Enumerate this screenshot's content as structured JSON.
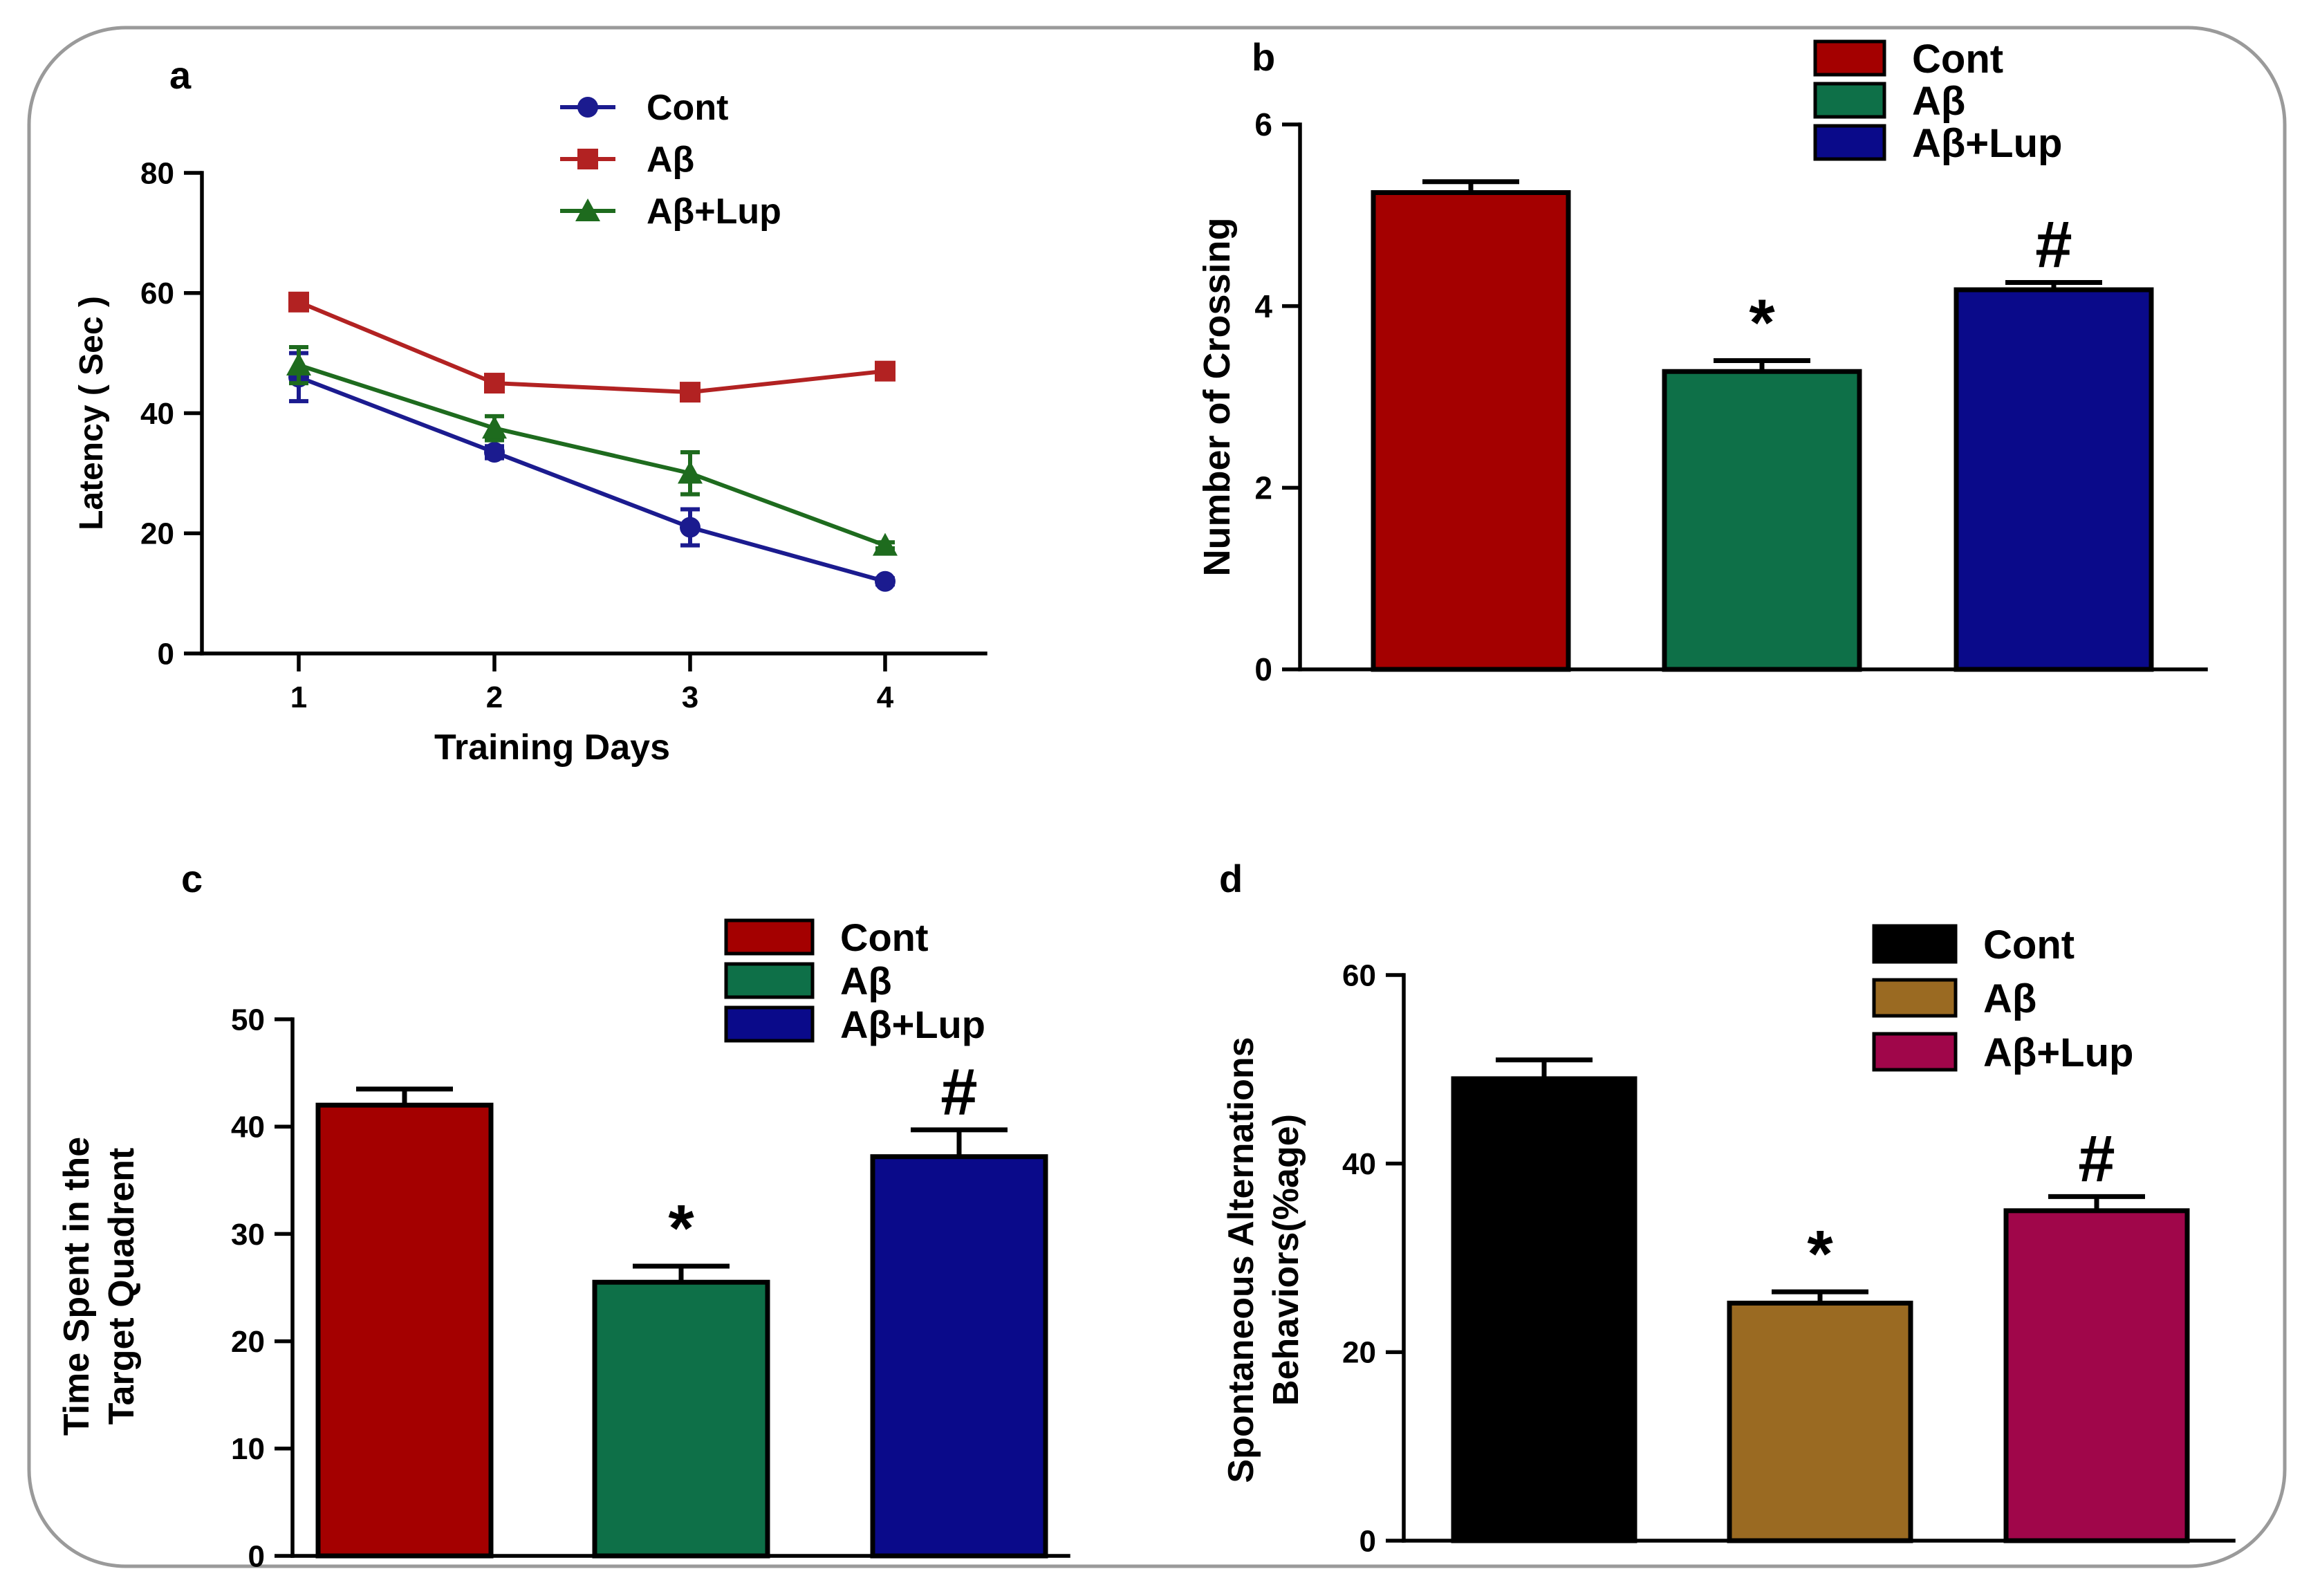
{
  "chart_data": [
    {
      "panel_label": "a",
      "type": "line",
      "xlabel": "Training Days",
      "ylabel": "Latency ( Sec )",
      "categories": [
        "1",
        "2",
        "3",
        "4"
      ],
      "x": [
        1,
        2,
        3,
        4
      ],
      "ylim": [
        0,
        80
      ],
      "yticks": [
        0,
        20,
        40,
        60,
        80
      ],
      "yticklabels": [
        "0",
        "20",
        "40",
        "60",
        "80"
      ],
      "series": [
        {
          "name": "Cont",
          "marker": "circle",
          "color": "#1b1b8f",
          "values": [
            46,
            33.5,
            21,
            12
          ],
          "errors": [
            4,
            1,
            3,
            0.5
          ]
        },
        {
          "name": "Aβ",
          "marker": "square",
          "color": "#b22222",
          "values": [
            58.5,
            45,
            43.5,
            47
          ],
          "errors": [
            1,
            1,
            1,
            1
          ]
        },
        {
          "name": "Aβ+Lup",
          "marker": "triangle",
          "color": "#1e6b1e",
          "values": [
            48,
            37.5,
            30,
            18
          ],
          "errors": [
            3,
            2,
            3.5,
            0.5
          ]
        }
      ]
    },
    {
      "panel_label": "b",
      "type": "bar",
      "xlabel": "",
      "ylabel": "Number of Crossing",
      "categories": [
        "Cont",
        "Aβ",
        "Aβ+Lup"
      ],
      "colors": [
        "#a40000",
        "#0e7048",
        "#0a0a8a"
      ],
      "values": [
        5.25,
        3.28,
        4.18
      ],
      "errors": [
        0.12,
        0.12,
        0.08
      ],
      "annotations": [
        "",
        "*",
        "#"
      ],
      "ylim": [
        0,
        6
      ],
      "yticks": [
        0,
        2,
        4,
        6
      ],
      "yticklabels": [
        "0",
        "2",
        "4",
        "6"
      ]
    },
    {
      "panel_label": "c",
      "type": "bar",
      "xlabel": "",
      "ylabel": "Time Spent in the Target Quadrent",
      "ylabel_lines": [
        "Time Spent in the",
        "Target Quadrent"
      ],
      "categories": [
        "Cont",
        "Aβ",
        "Aβ+Lup"
      ],
      "colors": [
        "#a40000",
        "#0e7048",
        "#0a0a8a"
      ],
      "values": [
        42,
        25.5,
        37.2
      ],
      "errors": [
        1.5,
        1.5,
        2.5
      ],
      "annotations": [
        "",
        "*",
        "#"
      ],
      "ylim": [
        0,
        50
      ],
      "yticks": [
        0,
        10,
        20,
        30,
        40,
        50
      ],
      "yticklabels": [
        "0",
        "10",
        "20",
        "30",
        "40",
        "50"
      ]
    },
    {
      "panel_label": "d",
      "type": "bar",
      "xlabel": "",
      "ylabel": "Spontaneous Alternations Behaviors(%age)",
      "ylabel_lines": [
        "Spontaneous Alternations",
        "Behaviors(%age)"
      ],
      "categories": [
        "Cont",
        "Aβ",
        "Aβ+Lup"
      ],
      "colors": [
        "#000000",
        "#9a6a22",
        "#a0064a"
      ],
      "values": [
        49,
        25.2,
        35
      ],
      "errors": [
        2,
        1.2,
        1.5
      ],
      "annotations": [
        "",
        "*",
        "#"
      ],
      "ylim": [
        0,
        60
      ],
      "yticks": [
        0,
        20,
        40,
        60
      ],
      "yticklabels": [
        "0",
        "20",
        "40",
        "60"
      ]
    }
  ]
}
